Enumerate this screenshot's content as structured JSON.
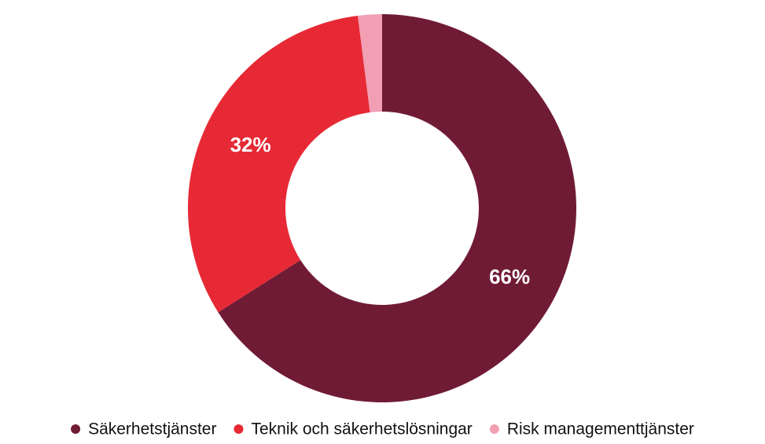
{
  "chart_data": {
    "type": "donut",
    "categories": [
      "Säkerhetstjänster",
      "Teknik och säkerhetslösningar",
      "Risk managementtjänster"
    ],
    "values": [
      66,
      32,
      2
    ],
    "value_labels": [
      "66%",
      "32%",
      null
    ],
    "colors": [
      "#701b35",
      "#e62935",
      "#f29fb3"
    ],
    "legend": "bottom"
  }
}
